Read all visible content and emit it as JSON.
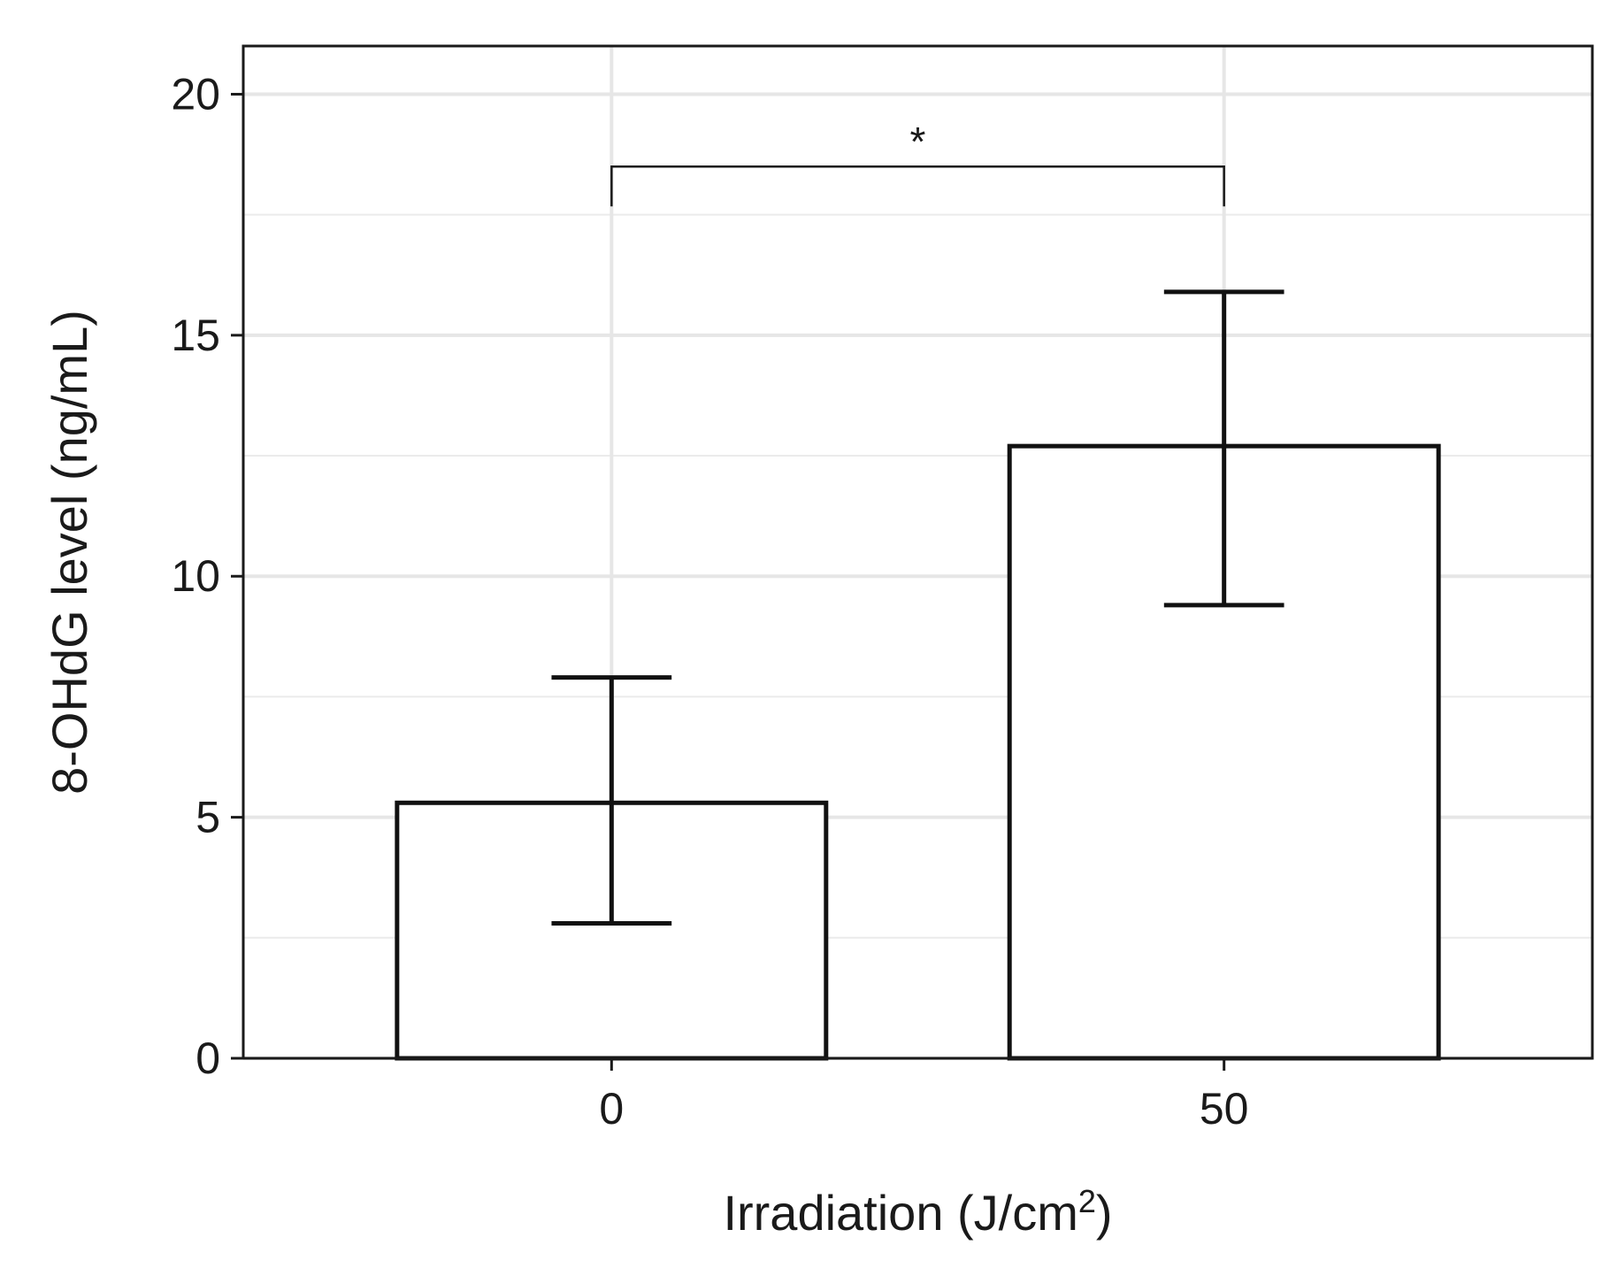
{
  "chart_data": {
    "type": "bar",
    "categories": [
      "0",
      "50"
    ],
    "values": [
      5.3,
      12.7
    ],
    "error_lower": [
      2.8,
      9.4
    ],
    "error_upper": [
      7.9,
      15.9
    ],
    "title": "",
    "xlabel": "Irradiation (J/cm",
    "xlabel_superscript": "2",
    "xlabel_suffix": ")",
    "ylabel": "8-OHdG level (ng/mL)",
    "ylim": [
      0,
      21
    ],
    "yticks": [
      0,
      5,
      10,
      15,
      20
    ],
    "grid": true,
    "significance": {
      "between": [
        "0",
        "50"
      ],
      "label": "*",
      "y": 18.5
    }
  }
}
